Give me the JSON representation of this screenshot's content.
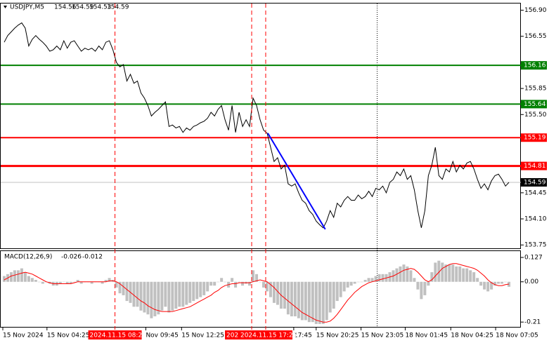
{
  "chart_data": [
    {
      "type": "line",
      "symbol": "USDJPY,M5",
      "ohlc": [
        154.56,
        154.59,
        154.53,
        154.59
      ],
      "color": "#000000",
      "xlim": [
        -1,
        147.2
      ],
      "ylim": [
        153.705,
        156.99
      ],
      "yticks": [
        {
          "value": 156.9,
          "label": "156.90"
        },
        156.55,
        155.85,
        {
          "value": 155.5,
          "label": "155.50"
        },
        154.45,
        {
          "value": 154.1,
          "label": "154.10"
        },
        153.75
      ],
      "xticks": [
        {
          "value": -0.4,
          "label": "15 Nov 2024"
        },
        {
          "value": 12.2,
          "label": "15 Nov 04:25"
        },
        {
          "value": 40.4,
          "label": "Nov 09:45"
        },
        {
          "value": 50.6,
          "label": "15 Nov 12:25"
        },
        {
          "value": 82.6,
          "label": "17:45"
        },
        {
          "value": 89,
          "label": "15 Nov 20:25"
        },
        {
          "value": 101.8,
          "label": "15 Nov 23:05"
        },
        {
          "value": 114.4,
          "label": "18 Nov 01:45"
        },
        {
          "value": 127.4,
          "label": "18 Nov 04:25"
        },
        {
          "value": 140.2,
          "label": "18 Nov 07:05"
        }
      ],
      "values": [
        156.47,
        156.56,
        156.61,
        156.66,
        156.7,
        156.73,
        156.66,
        156.42,
        156.51,
        156.56,
        156.51,
        156.47,
        156.42,
        156.35,
        156.37,
        156.42,
        156.37,
        156.49,
        156.39,
        156.47,
        156.49,
        156.42,
        156.35,
        156.39,
        156.37,
        156.39,
        156.35,
        156.42,
        156.37,
        156.47,
        156.49,
        156.37,
        156.2,
        156.14,
        156.17,
        155.95,
        156.04,
        155.92,
        155.95,
        155.79,
        155.72,
        155.62,
        155.48,
        155.53,
        155.57,
        155.62,
        155.67,
        155.34,
        155.36,
        155.32,
        155.34,
        155.26,
        155.32,
        155.29,
        155.34,
        155.36,
        155.39,
        155.41,
        155.45,
        155.53,
        155.48,
        155.57,
        155.62,
        155.43,
        155.29,
        155.62,
        155.26,
        155.53,
        155.34,
        155.43,
        155.34,
        155.72,
        155.62,
        155.43,
        155.29,
        155.25,
        155.06,
        154.87,
        154.92,
        154.77,
        154.82,
        154.57,
        154.54,
        154.57,
        154.45,
        154.35,
        154.31,
        154.21,
        154.16,
        154.07,
        154.02,
        153.98,
        154.07,
        154.21,
        154.12,
        154.31,
        154.26,
        154.35,
        154.4,
        154.35,
        154.35,
        154.42,
        154.37,
        154.4,
        154.47,
        154.4,
        154.51,
        154.49,
        154.54,
        154.45,
        154.59,
        154.63,
        154.73,
        154.68,
        154.77,
        154.63,
        154.68,
        154.49,
        154.21,
        153.98,
        154.21,
        154.68,
        154.82,
        155.06,
        154.68,
        154.63,
        154.77,
        154.73,
        154.87,
        154.73,
        154.82,
        154.77,
        154.85,
        154.87,
        154.77,
        154.63,
        154.51,
        154.57,
        154.49,
        154.61,
        154.68,
        154.7,
        154.63,
        154.54,
        154.59
      ],
      "levels": [
        {
          "value": 156.16,
          "color": "#008000"
        },
        {
          "value": 155.64,
          "color": "#008000"
        },
        {
          "value": 155.19,
          "color": "#ff0000"
        },
        {
          "value": 154.81,
          "color": "#ff0000"
        },
        {
          "value": 154.59,
          "color": "#c0c0c0"
        }
      ],
      "vlines": [
        {
          "x": 31.6,
          "label": "2024.11.15 08:25"
        },
        {
          "x": 70.6,
          "label": "202"
        },
        {
          "x": 74.6,
          "label": "2024.11.15 17:25"
        }
      ],
      "vline_color": "#ff0000",
      "dotted_vline": 106.4,
      "trendline": {
        "x": [
          75.2,
          91.6
        ],
        "y": [
          155.25,
          153.96
        ],
        "color": "#0000ff"
      }
    },
    {
      "type": "bar",
      "title": "MACD(12,26,9)",
      "readout": [
        -0.026,
        -0.012
      ],
      "color": "#c0c0c0",
      "xlim": [
        -1,
        147.2
      ],
      "ylim": [
        -0.235,
        0.16
      ],
      "yticks": [
        0.127,
        {
          "value": 0,
          "label": "0.00"
        },
        -0.21
      ],
      "values": [
        0.03,
        0.04,
        0.05,
        0.06,
        0.06,
        0.07,
        0.05,
        0.03,
        0.02,
        0.01,
        0,
        -0.01,
        0,
        -0.01,
        -0.02,
        -0.02,
        -0.01,
        0,
        -0.01,
        -0.01,
        0,
        0.01,
        -0.01,
        0,
        0,
        -0.01,
        0,
        0,
        -0.01,
        0.01,
        0.02,
        0.01,
        -0.03,
        -0.06,
        -0.07,
        -0.1,
        -0.11,
        -0.13,
        -0.13,
        -0.15,
        -0.16,
        -0.17,
        -0.19,
        -0.18,
        -0.17,
        -0.15,
        -0.13,
        -0.16,
        -0.15,
        -0.14,
        -0.13,
        -0.13,
        -0.12,
        -0.11,
        -0.1,
        -0.09,
        -0.08,
        -0.07,
        -0.05,
        -0.02,
        -0.02,
        0,
        0.02,
        0,
        -0.03,
        0.02,
        -0.03,
        0,
        -0.02,
        -0.01,
        -0.02,
        0.06,
        0.04,
        0,
        -0.03,
        -0.05,
        -0.08,
        -0.11,
        -0.12,
        -0.14,
        -0.14,
        -0.17,
        -0.18,
        -0.18,
        -0.19,
        -0.2,
        -0.2,
        -0.21,
        -0.21,
        -0.22,
        -0.22,
        -0.22,
        -0.2,
        -0.16,
        -0.14,
        -0.1,
        -0.08,
        -0.05,
        -0.03,
        -0.02,
        -0.01,
        0,
        0,
        0.01,
        0.02,
        0.02,
        0.03,
        0.04,
        0.04,
        0.04,
        0.05,
        0.06,
        0.07,
        0.08,
        0.09,
        0.08,
        0.06,
        0.02,
        -0.04,
        -0.09,
        -0.07,
        -0.02,
        0.05,
        0.1,
        0.11,
        0.1,
        0.09,
        0.09,
        0.09,
        0.08,
        0.08,
        0.07,
        0.07,
        0.06,
        0.05,
        0.02,
        -0.02,
        -0.04,
        -0.05,
        -0.04,
        -0.02,
        -0.01,
        -0.01,
        0,
        -0.026
      ],
      "signal": {
        "color": "#ff0000",
        "values": [
          0.01,
          0.02,
          0.03,
          0.035,
          0.04,
          0.045,
          0.05,
          0.045,
          0.04,
          0.03,
          0.02,
          0.01,
          0,
          -0.005,
          -0.01,
          -0.01,
          -0.01,
          -0.01,
          -0.01,
          -0.01,
          -0.005,
          0,
          0,
          0,
          0,
          0,
          0,
          0,
          0,
          0,
          0.005,
          0.005,
          0,
          -0.01,
          -0.025,
          -0.04,
          -0.055,
          -0.07,
          -0.085,
          -0.1,
          -0.11,
          -0.125,
          -0.135,
          -0.145,
          -0.15,
          -0.155,
          -0.155,
          -0.155,
          -0.155,
          -0.15,
          -0.145,
          -0.14,
          -0.135,
          -0.13,
          -0.12,
          -0.11,
          -0.1,
          -0.09,
          -0.08,
          -0.07,
          -0.055,
          -0.045,
          -0.03,
          -0.02,
          -0.015,
          -0.01,
          -0.01,
          -0.005,
          -0.005,
          -0.005,
          -0.005,
          0,
          0.005,
          0.01,
          0.005,
          0,
          -0.015,
          -0.03,
          -0.05,
          -0.07,
          -0.085,
          -0.1,
          -0.115,
          -0.13,
          -0.145,
          -0.16,
          -0.17,
          -0.18,
          -0.19,
          -0.2,
          -0.205,
          -0.21,
          -0.21,
          -0.205,
          -0.19,
          -0.17,
          -0.145,
          -0.12,
          -0.095,
          -0.075,
          -0.055,
          -0.04,
          -0.025,
          -0.015,
          -0.005,
          0,
          0.005,
          0.01,
          0.015,
          0.02,
          0.025,
          0.03,
          0.04,
          0.05,
          0.06,
          0.065,
          0.07,
          0.065,
          0.05,
          0.03,
          0.01,
          0,
          0.01,
          0.03,
          0.05,
          0.07,
          0.08,
          0.09,
          0.095,
          0.095,
          0.09,
          0.085,
          0.08,
          0.075,
          0.07,
          0.06,
          0.045,
          0.03,
          0.01,
          -0.005,
          -0.015,
          -0.02,
          -0.02,
          -0.015,
          -0.012
        ]
      }
    }
  ]
}
